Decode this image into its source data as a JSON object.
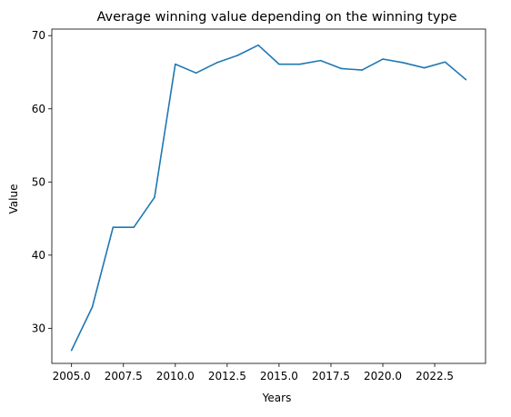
{
  "chart_data": {
    "type": "line",
    "title": "Average winning value depending on the winning type",
    "xlabel": "Years",
    "ylabel": "Value",
    "xlim": [
      2004.05,
      2024.95
    ],
    "ylim": [
      25.2,
      70.9
    ],
    "xticks": [
      2005.0,
      2007.5,
      2010.0,
      2012.5,
      2015.0,
      2017.5,
      2020.0,
      2022.5
    ],
    "xtick_labels": [
      "2005.0",
      "2007.5",
      "2010.0",
      "2012.5",
      "2015.0",
      "2017.5",
      "2020.0",
      "2022.5"
    ],
    "yticks": [
      30,
      40,
      50,
      60,
      70
    ],
    "ytick_labels": [
      "30",
      "40",
      "50",
      "60",
      "70"
    ],
    "grid": false,
    "series": [
      {
        "color": "#1f77b4",
        "x": [
          2005,
          2006,
          2007,
          2008,
          2009,
          2010,
          2011,
          2012,
          2013,
          2014,
          2015,
          2016,
          2017,
          2018,
          2019,
          2020,
          2021,
          2022,
          2023,
          2024
        ],
        "y": [
          27.0,
          32.9,
          43.8,
          43.8,
          47.9,
          66.1,
          64.9,
          66.3,
          67.3,
          68.7,
          66.1,
          66.1,
          66.6,
          65.5,
          65.3,
          66.8,
          66.3,
          65.6,
          66.4,
          64.0
        ]
      }
    ]
  }
}
